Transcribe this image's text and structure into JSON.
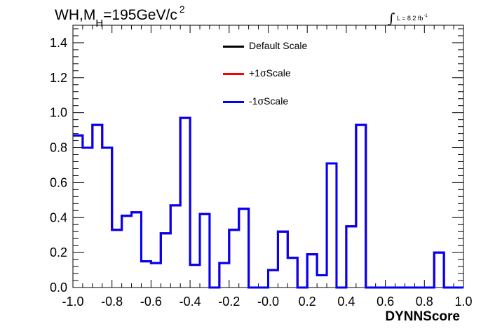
{
  "title": {
    "base": "WH,M",
    "sub": "H",
    "mass": "=195GeV/c",
    "sup": "2"
  },
  "lumi": {
    "integral": "∫",
    "text": "L = 8.2 fb",
    "sup": "-1"
  },
  "colors": {
    "default": "#000000",
    "plus": "#ff0000",
    "minus": "#0000ff",
    "axis": "#000000"
  },
  "legend": [
    {
      "label": "Default Scale",
      "color": "#000000"
    },
    {
      "label": "+1σScale",
      "color": "#ff0000"
    },
    {
      "label": "-1σScale",
      "color": "#0000ff"
    }
  ],
  "chart_data": {
    "type": "line",
    "style": "step-histogram",
    "xlabel": "DYNNScore",
    "ylabel": "",
    "xlim": [
      -1.0,
      1.0
    ],
    "ylim": [
      0,
      1.5
    ],
    "x_ticks": [
      "-1.0",
      "-0.8",
      "-0.6",
      "-0.4",
      "-0.2",
      "-0.0",
      "0.2",
      "0.4",
      "0.6",
      "0.8",
      "1.0"
    ],
    "y_ticks": [
      "0.0",
      "0.2",
      "0.4",
      "0.6",
      "0.8",
      "1.0",
      "1.2",
      "1.4"
    ],
    "bin_edges": [
      -1.0,
      -0.95,
      -0.9,
      -0.85,
      -0.8,
      -0.75,
      -0.7,
      -0.65,
      -0.6,
      -0.55,
      -0.5,
      -0.45,
      -0.4,
      -0.35,
      -0.3,
      -0.25,
      -0.2,
      -0.15,
      -0.1,
      -0.05,
      0.0,
      0.05,
      0.1,
      0.15,
      0.2,
      0.25,
      0.3,
      0.35,
      0.4,
      0.45,
      0.5,
      0.55,
      0.6,
      0.65,
      0.7,
      0.75,
      0.8,
      0.85,
      0.9,
      0.95,
      1.0
    ],
    "series": [
      {
        "name": "Default Scale",
        "color": "#000000",
        "values": [
          0.87,
          0.8,
          0.93,
          0.8,
          0.33,
          0.41,
          0.43,
          0.15,
          0.14,
          0.31,
          0.47,
          0.97,
          0.13,
          0.42,
          0.0,
          0.14,
          0.33,
          0.45,
          0.0,
          0.0,
          0.1,
          0.32,
          0.17,
          0.0,
          0.19,
          0.07,
          0.71,
          0.0,
          0.35,
          0.93,
          0.0,
          0.0,
          0.0,
          0.0,
          0.0,
          0.0,
          0.0,
          0.2,
          0.0,
          0.0
        ]
      },
      {
        "name": "+1σScale",
        "color": "#ff0000",
        "values": [
          0.87,
          0.8,
          0.93,
          0.8,
          0.33,
          0.41,
          0.43,
          0.15,
          0.14,
          0.31,
          0.47,
          0.97,
          0.13,
          0.42,
          0.0,
          0.14,
          0.33,
          0.45,
          0.0,
          0.0,
          0.1,
          0.32,
          0.17,
          0.0,
          0.19,
          0.07,
          0.71,
          0.0,
          0.35,
          0.93,
          0.0,
          0.0,
          0.0,
          0.0,
          0.0,
          0.0,
          0.0,
          0.2,
          0.0,
          0.0
        ]
      },
      {
        "name": "-1σScale",
        "color": "#0000ff",
        "values": [
          0.87,
          0.8,
          0.93,
          0.8,
          0.33,
          0.41,
          0.43,
          0.15,
          0.14,
          0.31,
          0.47,
          0.97,
          0.13,
          0.42,
          0.0,
          0.14,
          0.33,
          0.45,
          0.0,
          0.0,
          0.1,
          0.32,
          0.17,
          0.0,
          0.19,
          0.07,
          0.71,
          0.0,
          0.35,
          0.93,
          0.0,
          0.0,
          0.0,
          0.0,
          0.0,
          0.0,
          0.0,
          0.2,
          0.0,
          0.0
        ]
      }
    ]
  }
}
